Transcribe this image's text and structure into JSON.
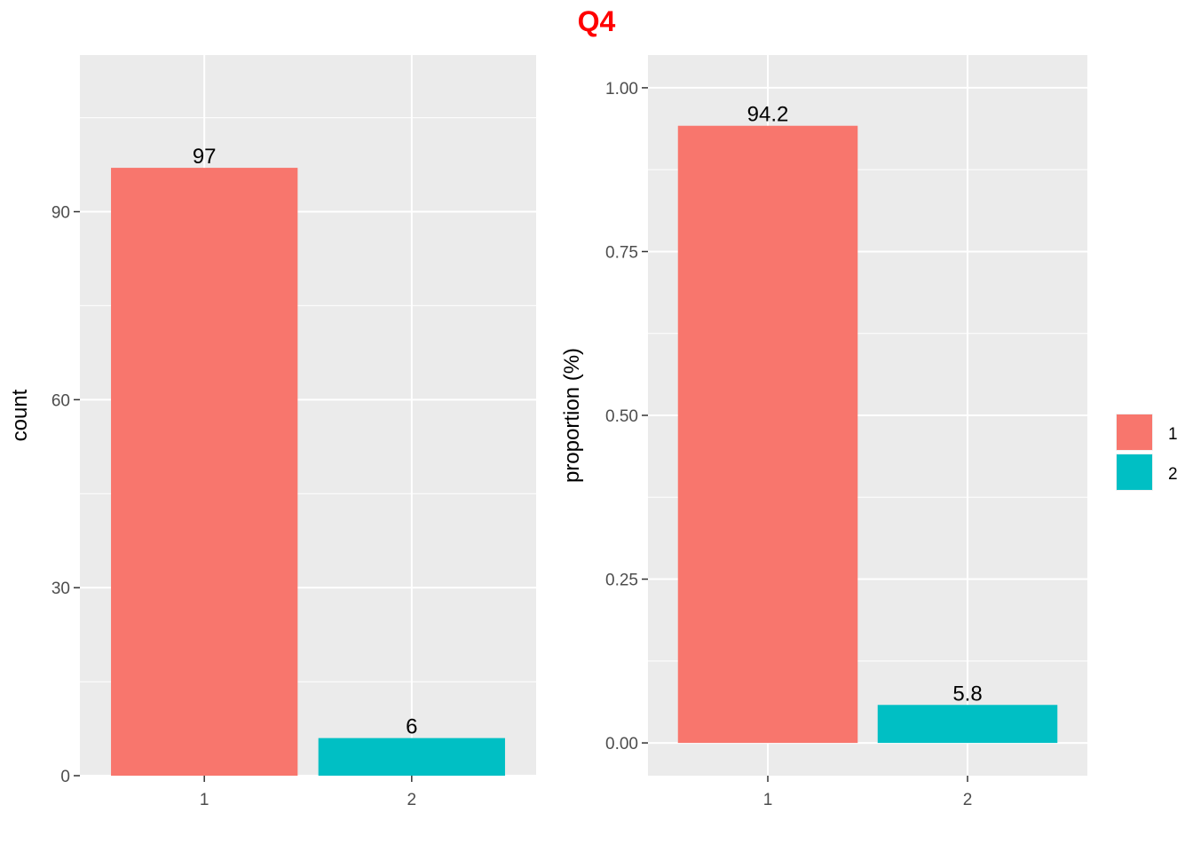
{
  "title": "Q4",
  "title_color": "#ff0000",
  "chart_data": [
    {
      "type": "bar",
      "categories": [
        "1",
        "2"
      ],
      "values": [
        97,
        6
      ],
      "data_labels": [
        "97",
        "6"
      ],
      "xlabel": "",
      "ylabel": "count",
      "ylim": [
        0,
        115
      ],
      "yticks": [
        0,
        30,
        60,
        90
      ],
      "ytick_labels": [
        "0",
        "30",
        "60",
        "90"
      ],
      "colors": [
        "#f8766d",
        "#00bfc4"
      ],
      "grid": true
    },
    {
      "type": "bar",
      "categories": [
        "1",
        "2"
      ],
      "values": [
        0.942,
        0.058
      ],
      "data_labels": [
        "94.2",
        "5.8"
      ],
      "xlabel": "",
      "ylabel": "proportion (%)",
      "ylim": [
        -0.05,
        1.05
      ],
      "yticks": [
        0,
        0.25,
        0.5,
        0.75,
        1.0
      ],
      "ytick_labels": [
        "0.00",
        "0.25",
        "0.50",
        "0.75",
        "1.00"
      ],
      "colors": [
        "#f8766d",
        "#00bfc4"
      ],
      "grid": true
    }
  ],
  "legend": {
    "placement": "right",
    "items": [
      {
        "label": "1",
        "color": "#f8766d"
      },
      {
        "label": "2",
        "color": "#00bfc4"
      }
    ]
  },
  "panel_background": "#ebebeb",
  "grid_color": "#ffffff"
}
